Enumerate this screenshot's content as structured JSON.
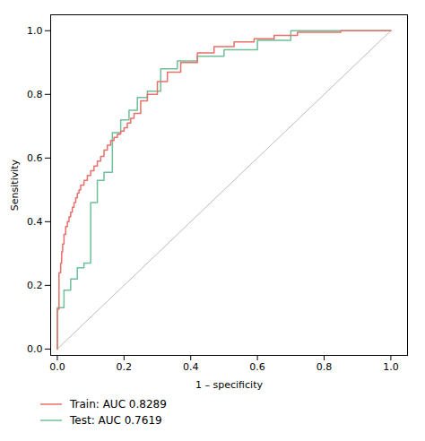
{
  "chart_data": {
    "type": "line",
    "xlabel": "1 – specificity",
    "ylabel": "Sensitivity",
    "xlim": [
      -0.02,
      1.05
    ],
    "ylim": [
      -0.02,
      1.05
    ],
    "xticks": [
      {
        "value": 0,
        "label": "0.0"
      },
      0.2,
      0.4,
      0.6,
      0.8,
      {
        "value": 1,
        "label": "1.0"
      }
    ],
    "yticks": [
      {
        "value": 0,
        "label": "0.0"
      },
      0.2,
      0.4,
      0.6,
      0.8,
      {
        "value": 1,
        "label": "1.0"
      }
    ],
    "grid": false,
    "legend": "bottom",
    "diagonal": {
      "x": [
        0,
        1
      ],
      "values": [
        0,
        1
      ],
      "color": "#BBBBBB"
    },
    "series": [
      {
        "name": "Train: AUC 0.8289",
        "color": "#E8706A",
        "x": [
          0.0,
          0.0,
          0.005,
          0.005,
          0.01,
          0.01,
          0.013,
          0.013,
          0.016,
          0.016,
          0.02,
          0.02,
          0.025,
          0.025,
          0.03,
          0.03,
          0.035,
          0.035,
          0.04,
          0.04,
          0.045,
          0.045,
          0.05,
          0.05,
          0.055,
          0.055,
          0.06,
          0.06,
          0.065,
          0.065,
          0.07,
          0.07,
          0.08,
          0.08,
          0.09,
          0.09,
          0.1,
          0.1,
          0.11,
          0.11,
          0.12,
          0.12,
          0.13,
          0.13,
          0.14,
          0.14,
          0.15,
          0.15,
          0.16,
          0.16,
          0.17,
          0.17,
          0.18,
          0.18,
          0.19,
          0.19,
          0.2,
          0.2,
          0.21,
          0.21,
          0.22,
          0.22,
          0.23,
          0.23,
          0.25,
          0.25,
          0.27,
          0.27,
          0.3,
          0.3,
          0.33,
          0.33,
          0.37,
          0.37,
          0.42,
          0.42,
          0.47,
          0.47,
          0.53,
          0.53,
          0.59,
          0.59,
          0.65,
          0.65,
          0.72,
          0.72,
          0.85,
          0.85,
          1.0,
          1.0
        ],
        "values": [
          0.0,
          0.125,
          0.125,
          0.24,
          0.24,
          0.27,
          0.27,
          0.305,
          0.305,
          0.33,
          0.33,
          0.36,
          0.36,
          0.385,
          0.385,
          0.4,
          0.4,
          0.415,
          0.415,
          0.43,
          0.43,
          0.445,
          0.445,
          0.46,
          0.46,
          0.475,
          0.475,
          0.49,
          0.49,
          0.5,
          0.5,
          0.515,
          0.515,
          0.53,
          0.53,
          0.545,
          0.545,
          0.56,
          0.56,
          0.575,
          0.575,
          0.59,
          0.59,
          0.605,
          0.605,
          0.625,
          0.625,
          0.64,
          0.64,
          0.655,
          0.655,
          0.665,
          0.665,
          0.675,
          0.675,
          0.685,
          0.685,
          0.695,
          0.695,
          0.71,
          0.71,
          0.725,
          0.725,
          0.74,
          0.74,
          0.78,
          0.78,
          0.8,
          0.8,
          0.84,
          0.84,
          0.87,
          0.87,
          0.9,
          0.9,
          0.93,
          0.93,
          0.95,
          0.95,
          0.965,
          0.965,
          0.975,
          0.975,
          0.985,
          0.985,
          0.995,
          0.995,
          1.0,
          1.0,
          1.0
        ]
      },
      {
        "name": "Test: AUC 0.7619",
        "color": "#6DC09A",
        "x": [
          0.0,
          0.0,
          0.02,
          0.02,
          0.04,
          0.04,
          0.06,
          0.06,
          0.08,
          0.08,
          0.1,
          0.1,
          0.12,
          0.12,
          0.14,
          0.14,
          0.165,
          0.165,
          0.19,
          0.19,
          0.215,
          0.215,
          0.24,
          0.24,
          0.27,
          0.27,
          0.31,
          0.31,
          0.36,
          0.36,
          0.42,
          0.42,
          0.5,
          0.5,
          0.6,
          0.6,
          0.7,
          0.7,
          0.76,
          0.76,
          1.0,
          1.0
        ],
        "values": [
          0.0,
          0.13,
          0.13,
          0.185,
          0.185,
          0.22,
          0.22,
          0.255,
          0.255,
          0.27,
          0.27,
          0.46,
          0.46,
          0.53,
          0.53,
          0.555,
          0.555,
          0.68,
          0.68,
          0.72,
          0.72,
          0.75,
          0.75,
          0.79,
          0.79,
          0.81,
          0.81,
          0.88,
          0.88,
          0.905,
          0.905,
          0.92,
          0.92,
          0.94,
          0.94,
          0.97,
          0.97,
          1.0,
          1.0,
          1.0,
          1.0,
          1.0
        ]
      }
    ]
  }
}
